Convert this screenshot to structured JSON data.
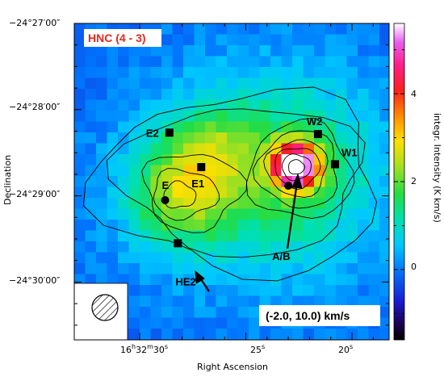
{
  "chart_data": {
    "type": "heatmap",
    "title": "HNC (4 - 3)",
    "velocity_range_label": "(-2.0, 10.0) km/s",
    "xlabel": "Right Ascension",
    "ylabel": "Declination",
    "colorbar_label": "integr. Intensity (K km/s)",
    "colorbar_ticks": [
      "0",
      "2",
      "4"
    ],
    "colorbar_range": [
      -1.6,
      5.6
    ],
    "x_ticks": [
      "16h32m30s",
      "25s",
      "20s"
    ],
    "y_ticks": [
      "−24°27′00″",
      "−24°28′00″",
      "−24°29′00″",
      "−24°30′00″"
    ],
    "sources": [
      {
        "name": "E2",
        "marker": "square",
        "ra_s": 28.6,
        "dec_s": 76
      },
      {
        "name": "W2",
        "marker": "square",
        "ra_s": 21.6,
        "dec_s": 77
      },
      {
        "name": "W1",
        "marker": "square",
        "ra_s": 20.8,
        "dec_s": 98
      },
      {
        "name": "E1",
        "marker": "square",
        "ra_s": 27.1,
        "dec_s": 100
      },
      {
        "name": "E",
        "marker": "circle",
        "ra_s": 28.8,
        "dec_s": 123
      },
      {
        "name": "HE2",
        "marker": "square",
        "ra_s": 28.2,
        "dec_s": 153
      },
      {
        "name": "A/B",
        "marker": "circle",
        "ra_s": 23.0,
        "dec_s": 113
      }
    ],
    "peak_intensity": 5.4,
    "beam": "hatched circle"
  }
}
